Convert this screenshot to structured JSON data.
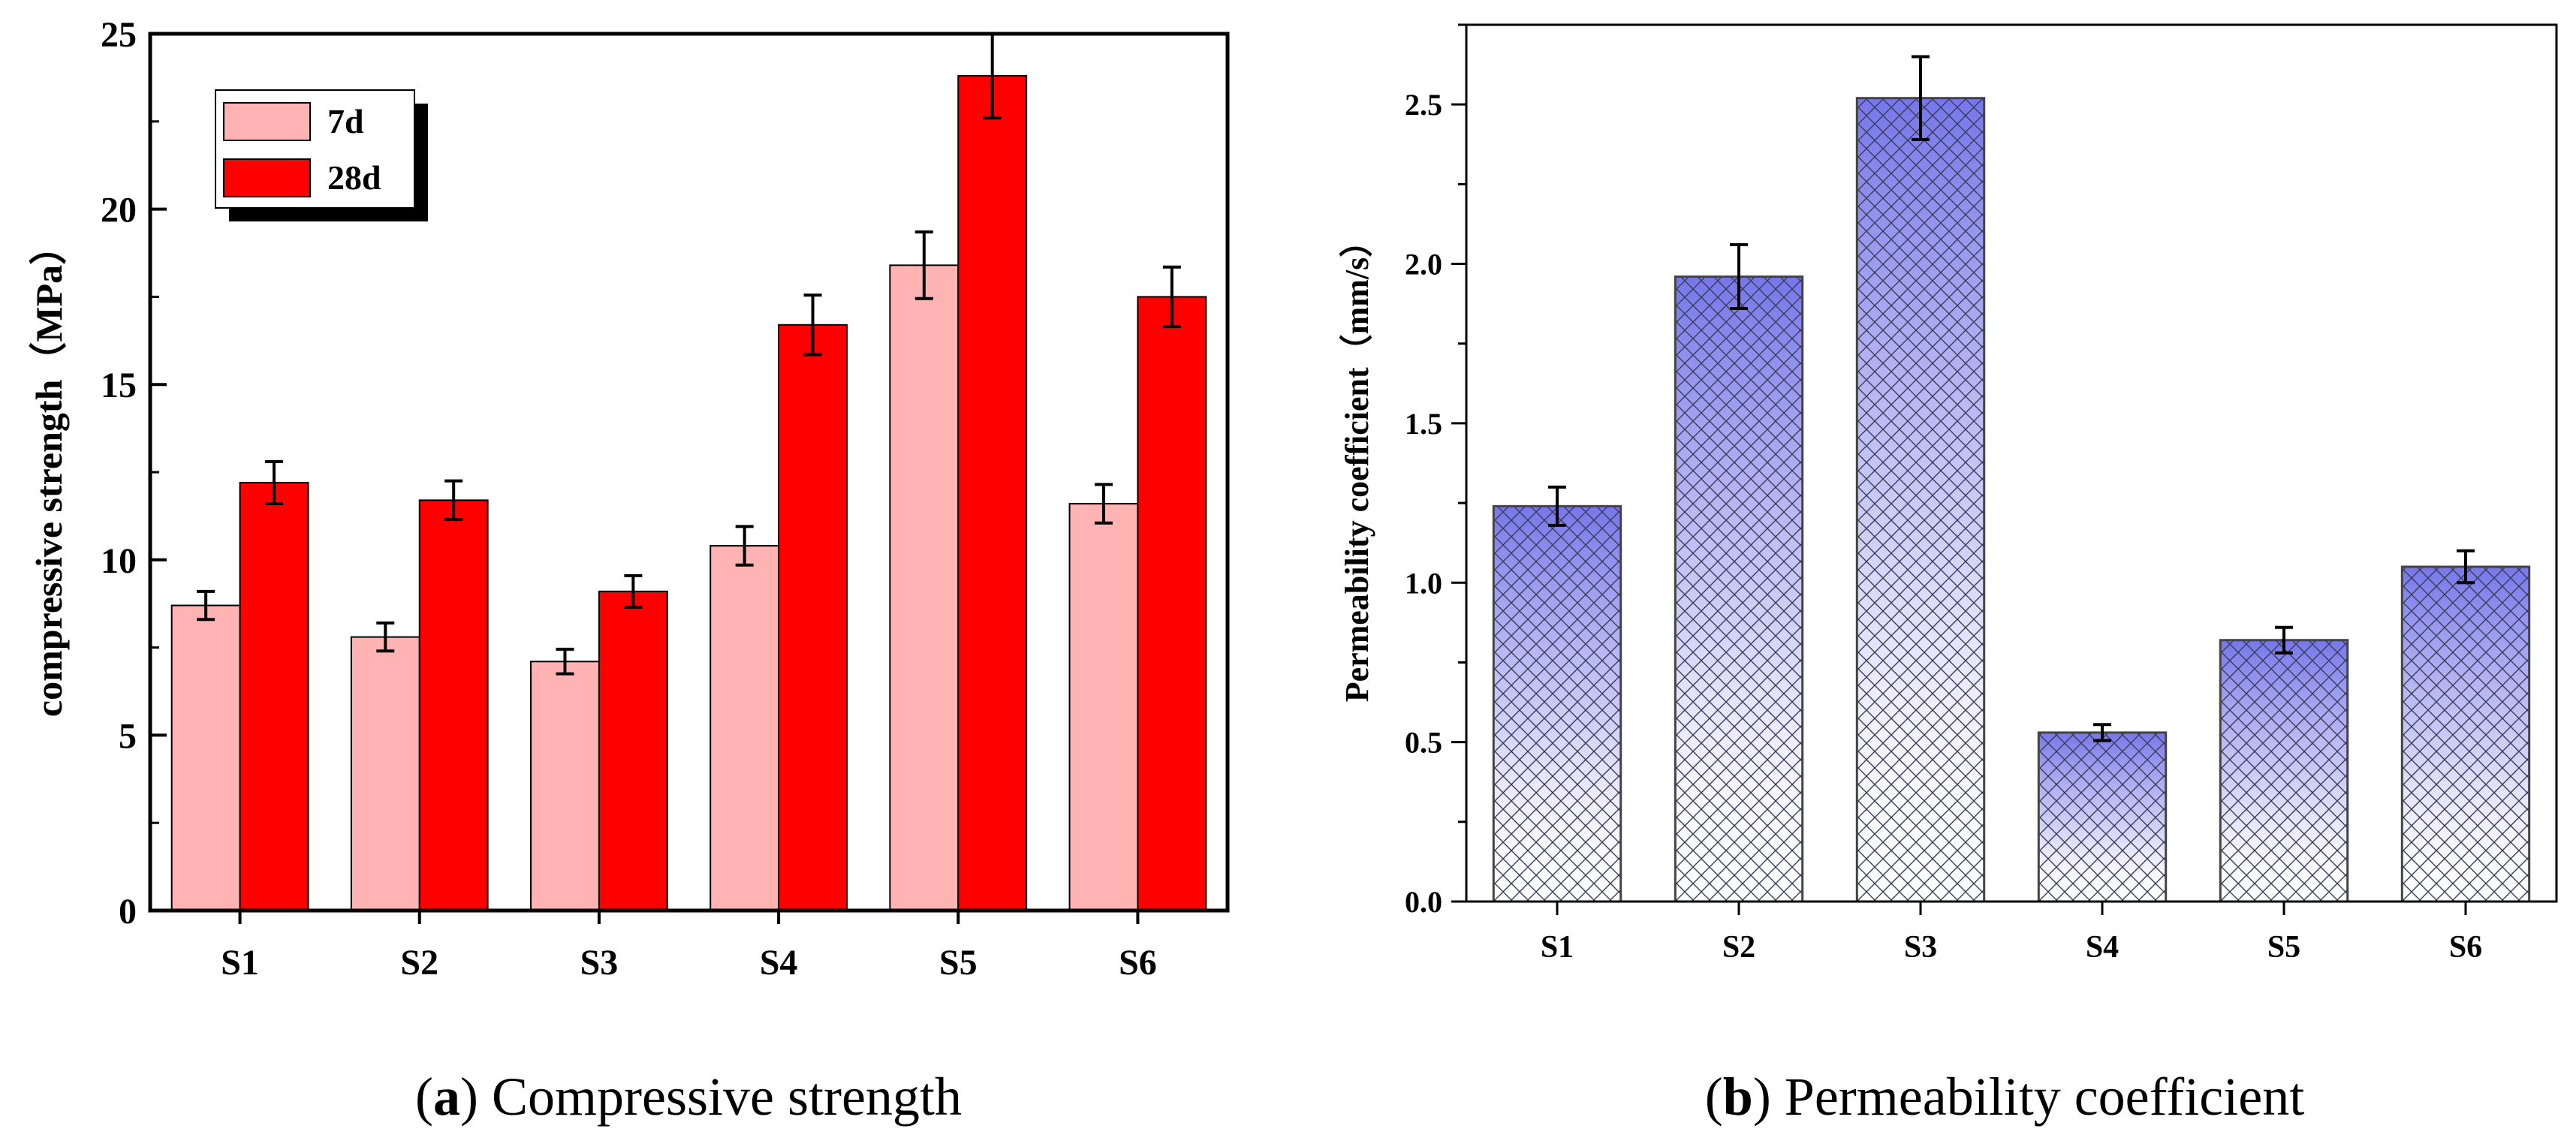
{
  "chart_data": [
    {
      "type": "bar",
      "title": "",
      "xlabel": "",
      "ylabel": "compressive strength（MPa）",
      "ylim": [
        0,
        25
      ],
      "yticks": [
        "0",
        "5",
        "10",
        "15",
        "20",
        "25"
      ],
      "categories": [
        "S1",
        "S2",
        "S3",
        "S4",
        "S5",
        "S6"
      ],
      "series": [
        {
          "name": "7d",
          "color": "#ffb3b3",
          "values": [
            8.7,
            7.8,
            7.1,
            10.4,
            18.4,
            11.6
          ],
          "errors": [
            0.4,
            0.4,
            0.35,
            0.55,
            0.95,
            0.55
          ]
        },
        {
          "name": "28d",
          "color": "#ff0000",
          "values": [
            12.2,
            11.7,
            9.1,
            16.7,
            23.8,
            17.5
          ],
          "errors": [
            0.6,
            0.55,
            0.45,
            0.85,
            1.2,
            0.85
          ]
        }
      ],
      "legend_position": "top-left",
      "caption": {
        "letter": "a",
        "text": " Compressive strength"
      }
    },
    {
      "type": "bar",
      "title": "",
      "xlabel": "",
      "ylabel": "Permeability coefficient（mm/s）",
      "ylim": [
        0,
        2.75
      ],
      "yticks": [
        "0.0",
        "0.5",
        "1.0",
        "1.5",
        "2.0",
        "2.5"
      ],
      "categories": [
        "S1",
        "S2",
        "S3",
        "S4",
        "S5",
        "S6"
      ],
      "series": [
        {
          "name": "Permeability coefficient",
          "color": "#6f6fe8",
          "values": [
            1.24,
            1.96,
            2.52,
            0.53,
            0.82,
            1.05
          ],
          "errors": [
            0.06,
            0.1,
            0.13,
            0.025,
            0.04,
            0.05
          ]
        }
      ],
      "caption": {
        "letter": "b",
        "text": " Permeability coefficient"
      }
    }
  ]
}
